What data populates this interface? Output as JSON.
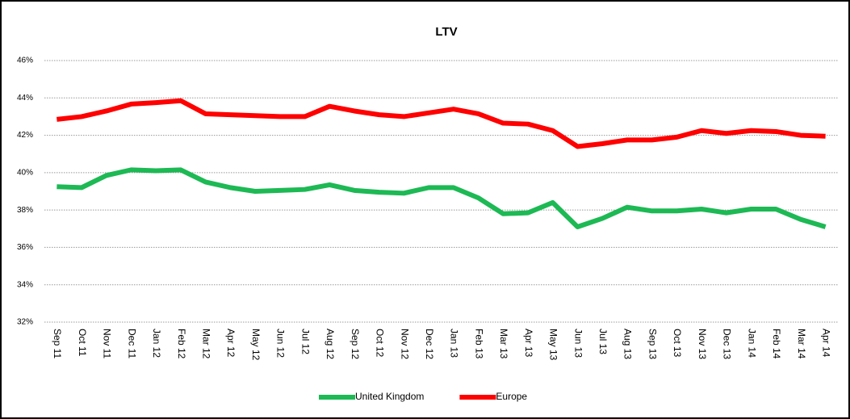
{
  "chart_data": {
    "type": "line",
    "title": "LTV",
    "categories": [
      "Sep 11",
      "Oct 11",
      "Nov 11",
      "Dec 11",
      "Jan 12",
      "Feb 12",
      "Mar 12",
      "Apr 12",
      "May 12",
      "Jun 12",
      "Jul 12",
      "Aug 12",
      "Sep 12",
      "Oct 12",
      "Nov 12",
      "Dec 12",
      "Jan 13",
      "Feb 13",
      "Mar 13",
      "Apr 13",
      "May 13",
      "Jun 13",
      "Jul 13",
      "Aug 13",
      "Sep 13",
      "Oct 13",
      "Nov 13",
      "Dec 13",
      "Jan 14",
      "Feb 14",
      "Mar 14",
      "Apr 14"
    ],
    "series": [
      {
        "name": "United Kingdom",
        "color": "#1db954",
        "values": [
          39.25,
          39.2,
          39.85,
          40.15,
          40.1,
          40.15,
          39.5,
          39.2,
          39.0,
          39.05,
          39.1,
          39.35,
          39.05,
          38.95,
          38.9,
          39.2,
          39.2,
          38.65,
          37.8,
          37.85,
          38.4,
          37.1,
          37.55,
          38.15,
          37.95,
          37.95,
          38.05,
          37.85,
          38.05,
          38.05,
          37.5,
          37.1
        ]
      },
      {
        "name": "Europe",
        "color": "#ff0000",
        "values": [
          42.85,
          43.0,
          43.3,
          43.67,
          43.75,
          43.85,
          43.15,
          43.1,
          43.05,
          43.0,
          43.0,
          43.55,
          43.3,
          43.1,
          43.0,
          43.2,
          43.4,
          43.15,
          42.65,
          42.6,
          42.25,
          41.4,
          41.55,
          41.75,
          41.75,
          41.9,
          42.25,
          42.1,
          42.25,
          42.2,
          42.0,
          41.95
        ]
      }
    ],
    "ylim": [
      32,
      46
    ],
    "yticks": [
      {
        "value": 32,
        "label": "32%"
      },
      {
        "value": 34,
        "label": "34%"
      },
      {
        "value": 36,
        "label": "36%"
      },
      {
        "value": 38,
        "label": "38%"
      },
      {
        "value": 40,
        "label": "40%"
      },
      {
        "value": 42,
        "label": "42%"
      },
      {
        "value": 44,
        "label": "44%"
      },
      {
        "value": 46,
        "label": "46%"
      }
    ],
    "grid": true,
    "legend": "bottom"
  }
}
